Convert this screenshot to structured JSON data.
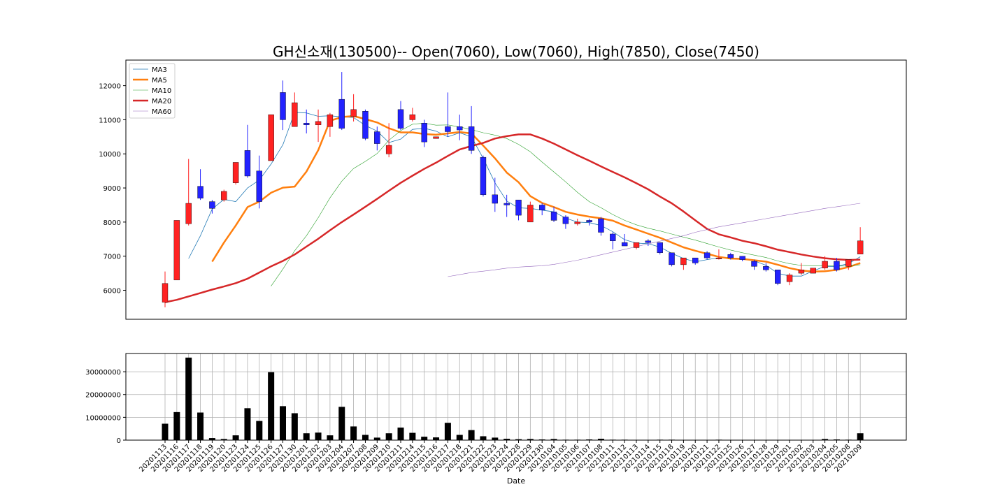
{
  "chart_data": {
    "type": "candlestick",
    "title": "GH신소재(130500)-- Open(7060), Low(7060), High(7850), Close(7450)",
    "xlabel": "Date",
    "up_color": "#ff2222",
    "down_color": "#2222ff",
    "price_ylim": [
      5150,
      12750
    ],
    "price_yticks": [
      6000,
      7000,
      8000,
      9000,
      10000,
      11000,
      12000
    ],
    "volume_ylim": [
      0,
      38000000
    ],
    "volume_yticks": [
      0,
      10000000,
      20000000,
      30000000
    ],
    "volume_grid": true,
    "legend_position": "top-left",
    "dates": [
      "20201113",
      "20201116",
      "20201117",
      "20201118",
      "20201119",
      "20201120",
      "20201123",
      "20201124",
      "20201125",
      "20201126",
      "20201127",
      "20201130",
      "20201201",
      "20201202",
      "20201203",
      "20201204",
      "20201207",
      "20201208",
      "20201209",
      "20201210",
      "20201211",
      "20201214",
      "20201215",
      "20201216",
      "20201217",
      "20201218",
      "20201221",
      "20201222",
      "20201223",
      "20201224",
      "20201228",
      "20201229",
      "20201230",
      "20210104",
      "20210105",
      "20210106",
      "20210107",
      "20210108",
      "20210111",
      "20210112",
      "20210113",
      "20210114",
      "20210115",
      "20210118",
      "20210119",
      "20210120",
      "20210121",
      "20210122",
      "20210125",
      "20210126",
      "20210127",
      "20210128",
      "20210129",
      "20210201",
      "20210202",
      "20210203",
      "20210204",
      "20210205",
      "20210208",
      "20210209"
    ],
    "candles": [
      {
        "o": 5650,
        "h": 6550,
        "l": 5500,
        "c": 6200
      },
      {
        "o": 6300,
        "h": 8050,
        "l": 6300,
        "c": 8050
      },
      {
        "o": 7950,
        "h": 9850,
        "l": 7900,
        "c": 8550
      },
      {
        "o": 9050,
        "h": 9550,
        "l": 8650,
        "c": 8700
      },
      {
        "o": 8600,
        "h": 8650,
        "l": 8250,
        "c": 8400
      },
      {
        "o": 8650,
        "h": 8950,
        "l": 8600,
        "c": 8900
      },
      {
        "o": 9150,
        "h": 9750,
        "l": 9100,
        "c": 9750
      },
      {
        "o": 10100,
        "h": 10850,
        "l": 9300,
        "c": 9350
      },
      {
        "o": 9500,
        "h": 9950,
        "l": 8400,
        "c": 8600
      },
      {
        "o": 9800,
        "h": 11150,
        "l": 9800,
        "c": 11150
      },
      {
        "o": 11800,
        "h": 12150,
        "l": 10700,
        "c": 11000
      },
      {
        "o": 10800,
        "h": 11800,
        "l": 10800,
        "c": 11500
      },
      {
        "o": 10900,
        "h": 11300,
        "l": 10600,
        "c": 10850
      },
      {
        "o": 10850,
        "h": 11300,
        "l": 10350,
        "c": 10950
      },
      {
        "o": 10800,
        "h": 11200,
        "l": 10500,
        "c": 11150
      },
      {
        "o": 11600,
        "h": 12400,
        "l": 10700,
        "c": 10750
      },
      {
        "o": 11100,
        "h": 11750,
        "l": 10950,
        "c": 11300
      },
      {
        "o": 11250,
        "h": 11300,
        "l": 10400,
        "c": 10450
      },
      {
        "o": 10650,
        "h": 10800,
        "l": 10100,
        "c": 10300
      },
      {
        "o": 10000,
        "h": 10900,
        "l": 9900,
        "c": 10250
      },
      {
        "o": 11300,
        "h": 11550,
        "l": 10700,
        "c": 10750
      },
      {
        "o": 11000,
        "h": 11350,
        "l": 10950,
        "c": 11150
      },
      {
        "o": 10900,
        "h": 11000,
        "l": 10200,
        "c": 10350
      },
      {
        "o": 10450,
        "h": 10500,
        "l": 10450,
        "c": 10500
      },
      {
        "o": 10800,
        "h": 11800,
        "l": 10500,
        "c": 10650
      },
      {
        "o": 10800,
        "h": 11150,
        "l": 10400,
        "c": 10700
      },
      {
        "o": 10800,
        "h": 11400,
        "l": 10000,
        "c": 10100
      },
      {
        "o": 9900,
        "h": 9950,
        "l": 8750,
        "c": 8800
      },
      {
        "o": 8800,
        "h": 9300,
        "l": 8300,
        "c": 8550
      },
      {
        "o": 8550,
        "h": 8800,
        "l": 8150,
        "c": 8500
      },
      {
        "o": 8650,
        "h": 8650,
        "l": 8050,
        "c": 8200
      },
      {
        "o": 8000,
        "h": 8600,
        "l": 8000,
        "c": 8500
      },
      {
        "o": 8500,
        "h": 8550,
        "l": 8200,
        "c": 8350
      },
      {
        "o": 8300,
        "h": 8450,
        "l": 8000,
        "c": 8050
      },
      {
        "o": 8150,
        "h": 8200,
        "l": 7800,
        "c": 7950
      },
      {
        "o": 7950,
        "h": 8100,
        "l": 7900,
        "c": 8000
      },
      {
        "o": 8050,
        "h": 8100,
        "l": 7900,
        "c": 8000
      },
      {
        "o": 8100,
        "h": 8150,
        "l": 7600,
        "c": 7700
      },
      {
        "o": 7650,
        "h": 7700,
        "l": 7200,
        "c": 7450
      },
      {
        "o": 7400,
        "h": 7650,
        "l": 7300,
        "c": 7300
      },
      {
        "o": 7250,
        "h": 7400,
        "l": 7200,
        "c": 7400
      },
      {
        "o": 7450,
        "h": 7500,
        "l": 7300,
        "c": 7400
      },
      {
        "o": 7400,
        "h": 7400,
        "l": 7050,
        "c": 7100
      },
      {
        "o": 7100,
        "h": 7100,
        "l": 6700,
        "c": 6750
      },
      {
        "o": 6750,
        "h": 6950,
        "l": 6600,
        "c": 6950
      },
      {
        "o": 6950,
        "h": 6950,
        "l": 6750,
        "c": 6800
      },
      {
        "o": 7100,
        "h": 7150,
        "l": 6900,
        "c": 6950
      },
      {
        "o": 6950,
        "h": 7200,
        "l": 6900,
        "c": 6950
      },
      {
        "o": 7050,
        "h": 7100,
        "l": 6900,
        "c": 6950
      },
      {
        "o": 7000,
        "h": 7000,
        "l": 6850,
        "c": 6900
      },
      {
        "o": 6850,
        "h": 6900,
        "l": 6600,
        "c": 6700
      },
      {
        "o": 6700,
        "h": 6800,
        "l": 6550,
        "c": 6600
      },
      {
        "o": 6600,
        "h": 6600,
        "l": 6150,
        "c": 6200
      },
      {
        "o": 6250,
        "h": 6500,
        "l": 6150,
        "c": 6450
      },
      {
        "o": 6500,
        "h": 6800,
        "l": 6450,
        "c": 6600
      },
      {
        "o": 6500,
        "h": 6650,
        "l": 6500,
        "c": 6650
      },
      {
        "o": 6650,
        "h": 7000,
        "l": 6600,
        "c": 6850
      },
      {
        "o": 6850,
        "h": 6950,
        "l": 6550,
        "c": 6600
      },
      {
        "o": 6700,
        "h": 6900,
        "l": 6600,
        "c": 6900
      },
      {
        "o": 7060,
        "h": 7850,
        "l": 7060,
        "c": 7450
      }
    ],
    "volume": [
      7200000,
      12300000,
      36200000,
      12100000,
      900000,
      500000,
      2100000,
      14000000,
      8400000,
      29800000,
      14900000,
      11800000,
      3000000,
      3300000,
      2100000,
      14600000,
      6000000,
      2300000,
      1100000,
      3000000,
      5500000,
      3200000,
      1500000,
      1200000,
      7600000,
      2300000,
      4400000,
      1700000,
      1100000,
      600000,
      400000,
      500000,
      300000,
      500000,
      200000,
      200000,
      300000,
      600000,
      200000,
      200000,
      0,
      0,
      200000,
      200000,
      100000,
      0,
      0,
      200000,
      0,
      0,
      0,
      0,
      100000,
      0,
      0,
      0,
      500000,
      300000,
      200000,
      3000000
    ],
    "series": [
      {
        "name": "MA3",
        "color": "#1f77b4",
        "width": 0.8,
        "values": [
          null,
          null,
          6933,
          7600,
          8383,
          8667,
          8600,
          9000,
          9233,
          9700,
          10267,
          11217,
          11200,
          11100,
          11117,
          11083,
          11067,
          10833,
          10667,
          10333,
          10433,
          10717,
          10750,
          10667,
          10500,
          10617,
          10500,
          9867,
          9150,
          8617,
          8417,
          8400,
          8350,
          8300,
          8117,
          8000,
          7983,
          7900,
          7717,
          7483,
          7383,
          7367,
          7267,
          7083,
          6933,
          6833,
          6900,
          6950,
          6950,
          6933,
          6867,
          6733,
          6500,
          6417,
          6417,
          6567,
          6700,
          6700,
          6783,
          6983
        ]
      },
      {
        "name": "MA5",
        "color": "#ff7f0e",
        "width": 2.5,
        "values": [
          null,
          null,
          null,
          null,
          6840,
          7400,
          7900,
          8440,
          8600,
          8860,
          9010,
          9040,
          9480,
          10110,
          10970,
          11080,
          11110,
          11020,
          10920,
          10750,
          10630,
          10630,
          10580,
          10560,
          10600,
          10640,
          10600,
          10240,
          9870,
          9450,
          9170,
          8760,
          8560,
          8440,
          8300,
          8220,
          8160,
          8110,
          8040,
          7900,
          7780,
          7660,
          7540,
          7400,
          7260,
          7160,
          7070,
          6980,
          6930,
          6920,
          6880,
          6840,
          6750,
          6650,
          6580,
          6550,
          6560,
          6600,
          6680,
          6800
        ]
      },
      {
        "name": "MA10",
        "color": "#2ca02c",
        "width": 0.6,
        "values": [
          null,
          null,
          null,
          null,
          null,
          null,
          null,
          null,
          null,
          6120,
          6620,
          7160,
          7600,
          8130,
          8710,
          9200,
          9570,
          9780,
          10010,
          10400,
          10680,
          10870,
          10900,
          10840,
          10850,
          10790,
          10710,
          10620,
          10550,
          10450,
          10280,
          10060,
          9760,
          9470,
          9180,
          8870,
          8600,
          8420,
          8220,
          8050,
          7920,
          7820,
          7740,
          7650,
          7560,
          7470,
          7370,
          7270,
          7180,
          7100,
          7030,
          6960,
          6860,
          6780,
          6730,
          6720,
          6720,
          6710,
          6710,
          6750
        ]
      },
      {
        "name": "MA20",
        "color": "#d62728",
        "width": 2.5,
        "values": [
          5650,
          5720,
          5820,
          5920,
          6020,
          6110,
          6210,
          6340,
          6520,
          6700,
          6860,
          7050,
          7280,
          7510,
          7760,
          8000,
          8220,
          8450,
          8680,
          8920,
          9150,
          9360,
          9560,
          9740,
          9940,
          10130,
          10230,
          10320,
          10450,
          10520,
          10570,
          10570,
          10450,
          10300,
          10130,
          9960,
          9800,
          9630,
          9470,
          9310,
          9140,
          8960,
          8750,
          8550,
          8310,
          8050,
          7800,
          7640,
          7550,
          7450,
          7380,
          7290,
          7190,
          7120,
          7050,
          6990,
          6940,
          6910,
          6890,
          6900
        ]
      },
      {
        "name": "MA60",
        "color": "#9467bd",
        "width": 0.6,
        "values": [
          null,
          null,
          null,
          null,
          null,
          null,
          null,
          null,
          null,
          null,
          null,
          null,
          null,
          null,
          null,
          null,
          null,
          null,
          null,
          null,
          null,
          null,
          null,
          null,
          6400,
          6460,
          6520,
          6560,
          6600,
          6650,
          6680,
          6700,
          6720,
          6760,
          6820,
          6880,
          6960,
          7040,
          7120,
          7200,
          7280,
          7360,
          7440,
          7520,
          7600,
          7700,
          7780,
          7860,
          7920,
          7980,
          8040,
          8100,
          8160,
          8220,
          8280,
          8340,
          8400,
          8450,
          8500,
          8550
        ]
      }
    ]
  }
}
